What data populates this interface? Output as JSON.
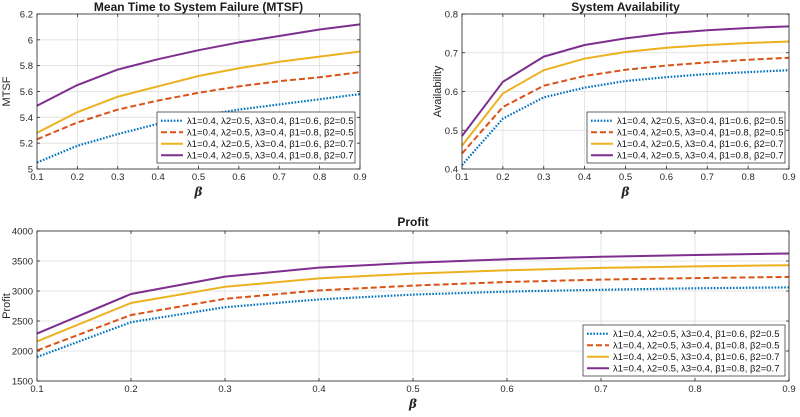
{
  "chart_data": [
    {
      "id": "mtsf",
      "type": "line",
      "title": "Mean Time to System Failure (MTSF)",
      "xlabel": "β",
      "ylabel": "MTSF",
      "xlim": [
        0.1,
        0.9
      ],
      "ylim": [
        5.0,
        6.2
      ],
      "xticks": [
        0.1,
        0.2,
        0.3,
        0.4,
        0.5,
        0.6,
        0.7,
        0.8,
        0.9
      ],
      "yticks": [
        5.0,
        5.2,
        5.4,
        5.6,
        5.8,
        6.0,
        6.2
      ],
      "ytick_labels": [
        "5",
        "5.2",
        "5.4",
        "5.6",
        "5.8",
        "6",
        "6.2"
      ],
      "grid": true,
      "legend_position": "bottom-right",
      "x": [
        0.1,
        0.2,
        0.3,
        0.4,
        0.5,
        0.6,
        0.7,
        0.8,
        0.9
      ],
      "series": [
        {
          "name": "λ1=0.4, λ2=0.5, λ3=0.4, β1=0.6, β2=0.5",
          "color": "#0072BD",
          "dash": "dotted",
          "values": [
            5.05,
            5.18,
            5.27,
            5.35,
            5.41,
            5.46,
            5.5,
            5.54,
            5.58
          ]
        },
        {
          "name": "λ1=0.4, λ2=0.5, λ3=0.4, β1=0.8, β2=0.5",
          "color": "#D95319",
          "dash": "dashed",
          "values": [
            5.23,
            5.36,
            5.46,
            5.53,
            5.59,
            5.64,
            5.68,
            5.71,
            5.75
          ]
        },
        {
          "name": "λ1=0.4, λ2=0.5, λ3=0.4, β1=0.6, β2=0.7",
          "color": "#EDB120",
          "dash": "solid",
          "values": [
            5.28,
            5.44,
            5.56,
            5.64,
            5.72,
            5.78,
            5.83,
            5.87,
            5.91
          ]
        },
        {
          "name": "λ1=0.4, λ2=0.5, λ3=0.4, β1=0.8, β2=0.7",
          "color": "#7E2F8E",
          "dash": "solid",
          "values": [
            5.49,
            5.65,
            5.77,
            5.85,
            5.92,
            5.98,
            6.03,
            6.08,
            6.12
          ]
        }
      ]
    },
    {
      "id": "availability",
      "type": "line",
      "title": "System Availability",
      "xlabel": "β",
      "ylabel": "Availability",
      "xlim": [
        0.1,
        0.9
      ],
      "ylim": [
        0.4,
        0.8
      ],
      "xticks": [
        0.1,
        0.2,
        0.3,
        0.4,
        0.5,
        0.6,
        0.7,
        0.8,
        0.9
      ],
      "yticks": [
        0.4,
        0.5,
        0.6,
        0.7,
        0.8
      ],
      "ytick_labels": [
        "0.4",
        "0.5",
        "0.6",
        "0.7",
        "0.8"
      ],
      "grid": true,
      "legend_position": "bottom-right",
      "x": [
        0.1,
        0.2,
        0.3,
        0.4,
        0.5,
        0.6,
        0.7,
        0.8,
        0.9
      ],
      "series": [
        {
          "name": "λ1=0.4, λ2=0.5, λ3=0.4, β1=0.6, β2=0.5",
          "color": "#0072BD",
          "dash": "dotted",
          "values": [
            0.41,
            0.53,
            0.585,
            0.61,
            0.627,
            0.637,
            0.645,
            0.65,
            0.655
          ]
        },
        {
          "name": "λ1=0.4, λ2=0.5, λ3=0.4, β1=0.8, β2=0.5",
          "color": "#D95319",
          "dash": "dashed",
          "values": [
            0.44,
            0.56,
            0.615,
            0.64,
            0.656,
            0.667,
            0.675,
            0.682,
            0.687
          ]
        },
        {
          "name": "λ1=0.4, λ2=0.5, λ3=0.4, β1=0.6, β2=0.7",
          "color": "#EDB120",
          "dash": "solid",
          "values": [
            0.46,
            0.595,
            0.655,
            0.685,
            0.702,
            0.713,
            0.72,
            0.725,
            0.729
          ]
        },
        {
          "name": "λ1=0.4, λ2=0.5, λ3=0.4, β1=0.8, β2=0.7",
          "color": "#7E2F8E",
          "dash": "solid",
          "values": [
            0.485,
            0.625,
            0.69,
            0.72,
            0.737,
            0.75,
            0.758,
            0.764,
            0.768
          ]
        }
      ]
    },
    {
      "id": "profit",
      "type": "line",
      "title": "Profit",
      "xlabel": "β",
      "ylabel": "Profit",
      "xlim": [
        0.1,
        0.9
      ],
      "ylim": [
        1500,
        4000
      ],
      "xticks": [
        0.1,
        0.2,
        0.3,
        0.4,
        0.5,
        0.6,
        0.7,
        0.8,
        0.9
      ],
      "yticks": [
        1500,
        2000,
        2500,
        3000,
        3500,
        4000
      ],
      "ytick_labels": [
        "1500",
        "2000",
        "2500",
        "3000",
        "3500",
        "4000"
      ],
      "grid": true,
      "legend_position": "bottom-right",
      "x": [
        0.1,
        0.2,
        0.3,
        0.4,
        0.5,
        0.6,
        0.7,
        0.8,
        0.9
      ],
      "series": [
        {
          "name": "λ1=0.4, λ2=0.5, λ3=0.4, β1=0.6, β2=0.5",
          "color": "#0072BD",
          "dash": "dotted",
          "values": [
            1900,
            2480,
            2730,
            2860,
            2940,
            2990,
            3020,
            3045,
            3060
          ]
        },
        {
          "name": "λ1=0.4, λ2=0.5, λ3=0.4, β1=0.8, β2=0.5",
          "color": "#D95319",
          "dash": "dashed",
          "values": [
            2010,
            2600,
            2870,
            3010,
            3090,
            3150,
            3190,
            3215,
            3235
          ]
        },
        {
          "name": "λ1=0.4, λ2=0.5, λ3=0.4, β1=0.6, β2=0.7",
          "color": "#EDB120",
          "dash": "solid",
          "values": [
            2160,
            2800,
            3070,
            3210,
            3290,
            3345,
            3385,
            3410,
            3430
          ]
        },
        {
          "name": "λ1=0.4, λ2=0.5, λ3=0.4, β1=0.8, β2=0.7",
          "color": "#7E2F8E",
          "dash": "solid",
          "values": [
            2290,
            2950,
            3240,
            3390,
            3470,
            3530,
            3570,
            3600,
            3625
          ]
        }
      ]
    }
  ]
}
